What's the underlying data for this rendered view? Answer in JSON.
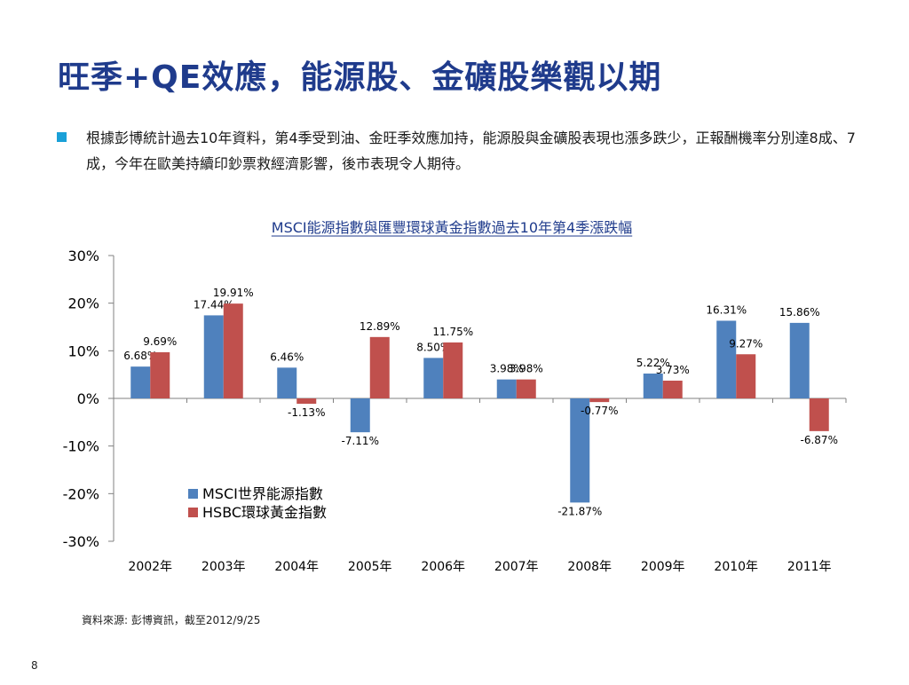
{
  "slide": {
    "title": "旺季+QE效應，能源股、金礦股樂觀以期",
    "bullet": "根據彭博統計過去10年資料，第4季受到油、金旺季效應加持，能源股與金礦股表現也漲多跌少，正報酬機率分別達8成、7成，今年在歐美持續印鈔票救經濟影響，後市表現令人期待。",
    "source": "資料來源: 彭博資訊，截至2012/9/25",
    "page_number": "8",
    "accent_color": "#1AA0D8",
    "title_color": "#1F3B8C"
  },
  "chart_data": {
    "type": "bar",
    "title": "MSCI能源指數與匯豐環球黃金指數過去10年第4季漲跌幅",
    "categories": [
      "2002年",
      "2003年",
      "2004年",
      "2005年",
      "2006年",
      "2007年",
      "2008年",
      "2009年",
      "2010年",
      "2011年"
    ],
    "series": [
      {
        "name": "MSCI世界能源指數",
        "color": "#4F81BD",
        "values": [
          6.68,
          17.44,
          6.46,
          -7.11,
          8.5,
          3.98,
          -21.87,
          5.22,
          16.31,
          15.86
        ],
        "labels": [
          "6.68%",
          "17.44%",
          "6.46%",
          "-7.11%",
          "8.50%",
          "3.98%",
          "-21.87%",
          "5.22%",
          "16.31%",
          "15.86%"
        ]
      },
      {
        "name": "HSBC環球黃金指數",
        "color": "#C0504D",
        "values": [
          9.69,
          19.91,
          -1.13,
          12.89,
          11.75,
          3.98,
          -0.77,
          3.73,
          9.27,
          -6.87
        ],
        "labels": [
          "9.69%",
          "19.91%",
          "-1.13%",
          "12.89%",
          "11.75%",
          "3.98%",
          "-0.77%",
          "3.73%",
          "9.27%",
          "-6.87%"
        ]
      }
    ],
    "ylim": [
      -30,
      30
    ],
    "yticks": [
      30,
      20,
      10,
      0,
      -10,
      -20,
      -30
    ],
    "ytick_labels": [
      "30%",
      "20%",
      "10%",
      "0%",
      "-10%",
      "-20%",
      "-30%"
    ],
    "grid": false,
    "legend_position": "bottom-left"
  }
}
